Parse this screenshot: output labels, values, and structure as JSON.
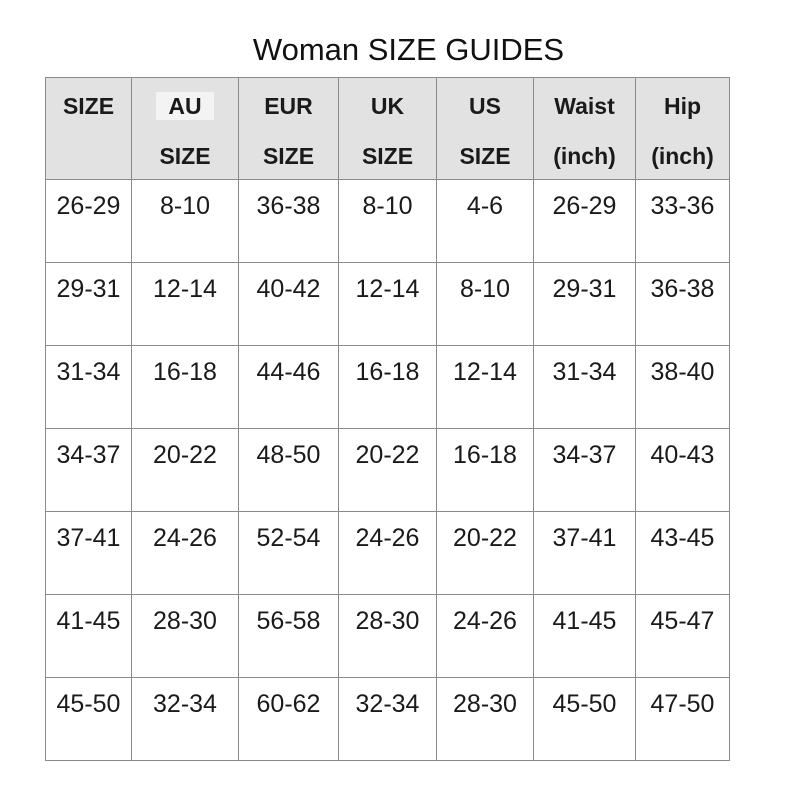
{
  "title": "Woman SIZE GUIDES",
  "colors": {
    "header_background": "#e2e2e2",
    "grid_line": "#8a8a8a",
    "text": "#1a1a1a"
  },
  "table": {
    "headers": [
      {
        "line1": "SIZE",
        "line2": ""
      },
      {
        "line1": "AU",
        "line2": "SIZE"
      },
      {
        "line1": "EUR",
        "line2": "SIZE"
      },
      {
        "line1": "UK",
        "line2": "SIZE"
      },
      {
        "line1": "US",
        "line2": "SIZE"
      },
      {
        "line1": "Waist",
        "line2": "(inch)"
      },
      {
        "line1": "Hip",
        "line2": "(inch)"
      }
    ],
    "rows": [
      [
        "26-29",
        "8-10",
        "36-38",
        "8-10",
        "4-6",
        "26-29",
        "33-36"
      ],
      [
        "29-31",
        "12-14",
        "40-42",
        "12-14",
        "8-10",
        "29-31",
        "36-38"
      ],
      [
        "31-34",
        "16-18",
        "44-46",
        "16-18",
        "12-14",
        "31-34",
        "38-40"
      ],
      [
        "34-37",
        "20-22",
        "48-50",
        "20-22",
        "16-18",
        "34-37",
        "40-43"
      ],
      [
        "37-41",
        "24-26",
        "52-54",
        "24-26",
        "20-22",
        "37-41",
        "43-45"
      ],
      [
        "41-45",
        "28-30",
        "56-58",
        "28-30",
        "24-26",
        "41-45",
        "45-47"
      ],
      [
        "45-50",
        "32-34",
        "60-62",
        "32-34",
        "28-30",
        "45-50",
        "47-50"
      ]
    ]
  }
}
